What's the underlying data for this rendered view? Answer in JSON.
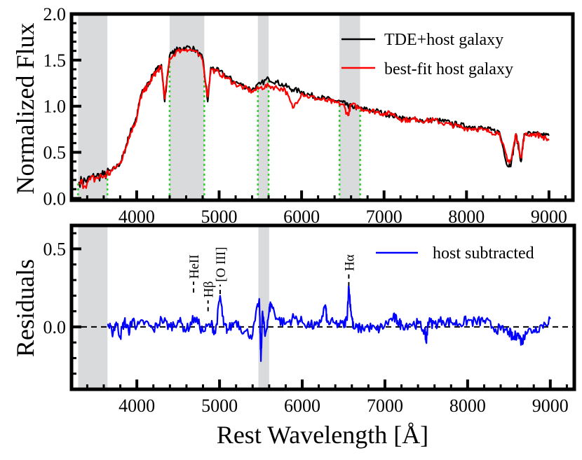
{
  "chart_data": [
    {
      "type": "line",
      "panel": "top",
      "title": "",
      "xlabel": "",
      "ylabel": "Normalized Flux",
      "xlim": [
        3210,
        9290
      ],
      "ylim": [
        -0.02,
        2.0
      ],
      "xticks": [
        4000,
        5000,
        6000,
        7000,
        8000,
        9000
      ],
      "xtick_labels": [
        "4000",
        "5000",
        "6000",
        "7000",
        "8000",
        "9000"
      ],
      "yticks": [
        0.0,
        0.5,
        1.0,
        1.5,
        2.0
      ],
      "ytick_labels": [
        "0.0",
        "0.5",
        "1.0",
        "1.5",
        "2.0"
      ],
      "grid": false,
      "legend": "top-right",
      "shaded_regions": [
        [
          3290,
          3645
        ],
        [
          4400,
          4820
        ],
        [
          5470,
          5600
        ],
        [
          6460,
          6710
        ]
      ],
      "dotted_lines_color": "#33cc33",
      "series": [
        {
          "name": "TDE+host galaxy",
          "color": "#000000",
          "x": [
            3300,
            3400,
            3500,
            3600,
            3700,
            3800,
            3850,
            3900,
            3950,
            4000,
            4050,
            4100,
            4150,
            4200,
            4250,
            4300,
            4340,
            4400,
            4500,
            4600,
            4700,
            4800,
            4861,
            4900,
            5000,
            5100,
            5200,
            5300,
            5400,
            5500,
            5600,
            5700,
            5800,
            5893,
            6000,
            6100,
            6200,
            6300,
            6400,
            6500,
            6563,
            6600,
            6700,
            6800,
            6900,
            7000,
            7100,
            7200,
            7300,
            7400,
            7500,
            7600,
            7700,
            7800,
            7900,
            8000,
            8100,
            8200,
            8300,
            8400,
            8498,
            8542,
            8600,
            8662,
            8700,
            8800,
            8900,
            9000
          ],
          "y": [
            0.18,
            0.2,
            0.24,
            0.25,
            0.3,
            0.38,
            0.5,
            0.66,
            0.78,
            0.88,
            1.12,
            1.2,
            1.25,
            1.35,
            1.4,
            1.45,
            1.05,
            1.55,
            1.62,
            1.64,
            1.62,
            1.52,
            1.05,
            1.42,
            1.38,
            1.32,
            1.26,
            1.22,
            1.18,
            1.24,
            1.3,
            1.26,
            1.22,
            1.18,
            1.16,
            1.12,
            1.1,
            1.08,
            1.06,
            1.04,
            1.0,
            1.0,
            0.98,
            0.96,
            0.95,
            0.92,
            0.9,
            0.88,
            0.85,
            0.86,
            0.84,
            0.85,
            0.84,
            0.82,
            0.8,
            0.78,
            0.78,
            0.76,
            0.74,
            0.72,
            0.35,
            0.38,
            0.7,
            0.4,
            0.7,
            0.7,
            0.69,
            0.68
          ]
        },
        {
          "name": "best-fit host galaxy",
          "color": "#ff0000",
          "x": [
            3300,
            3400,
            3500,
            3600,
            3700,
            3800,
            3850,
            3900,
            3950,
            4000,
            4050,
            4100,
            4150,
            4200,
            4250,
            4300,
            4340,
            4400,
            4500,
            4600,
            4700,
            4800,
            4861,
            4900,
            5000,
            5100,
            5200,
            5300,
            5400,
            5500,
            5600,
            5700,
            5800,
            5893,
            6000,
            6100,
            6200,
            6300,
            6400,
            6500,
            6563,
            6600,
            6700,
            6800,
            6900,
            7000,
            7100,
            7200,
            7300,
            7400,
            7500,
            7600,
            7700,
            7800,
            7900,
            8000,
            8100,
            8200,
            8300,
            8400,
            8498,
            8542,
            8600,
            8662,
            8700,
            8800,
            8900,
            9000
          ],
          "y": [
            0.16,
            0.17,
            0.22,
            0.24,
            0.3,
            0.38,
            0.5,
            0.65,
            0.76,
            0.86,
            1.1,
            1.18,
            1.24,
            1.33,
            1.38,
            1.43,
            1.08,
            1.52,
            1.6,
            1.62,
            1.6,
            1.5,
            1.1,
            1.4,
            1.36,
            1.3,
            1.24,
            1.2,
            1.16,
            1.2,
            1.22,
            1.2,
            1.18,
            0.98,
            1.14,
            1.1,
            1.08,
            1.06,
            1.04,
            1.02,
            0.9,
            1.02,
            0.98,
            0.96,
            0.94,
            0.92,
            0.92,
            0.86,
            0.85,
            0.86,
            0.84,
            0.85,
            0.82,
            0.8,
            0.78,
            0.76,
            0.76,
            0.74,
            0.72,
            0.71,
            0.4,
            0.42,
            0.7,
            0.44,
            0.68,
            0.7,
            0.68,
            0.63
          ]
        }
      ]
    },
    {
      "type": "line",
      "panel": "bottom",
      "title": "",
      "xlabel": "Rest Wavelength [Å]",
      "ylabel": "Residuals",
      "xlim": [
        3210,
        9290
      ],
      "ylim": [
        -0.4,
        0.65
      ],
      "xticks": [
        4000,
        5000,
        6000,
        7000,
        8000,
        9000
      ],
      "xtick_labels": [
        "4000",
        "5000",
        "6000",
        "7000",
        "8000",
        "9000"
      ],
      "yticks": [
        0.0,
        0.5
      ],
      "ytick_labels": [
        "0.0",
        "0.5"
      ],
      "grid": false,
      "legend": "top-right",
      "shaded_regions": [
        [
          3290,
          3645
        ],
        [
          5470,
          5600
        ]
      ],
      "zero_line": 0.0,
      "annotations": [
        {
          "label": "HeII",
          "x": 4686
        },
        {
          "label": "Hβ",
          "x": 4861
        },
        {
          "label": "[O III]",
          "x": 5007
        },
        {
          "label": "Hα",
          "x": 6563
        }
      ],
      "series": [
        {
          "name": "host subtracted",
          "color": "#0000ff",
          "x": [
            3650,
            3700,
            3750,
            3800,
            3850,
            3900,
            3950,
            4000,
            4100,
            4200,
            4300,
            4400,
            4500,
            4600,
            4700,
            4800,
            4900,
            4950,
            5007,
            5050,
            5100,
            5200,
            5300,
            5400,
            5480,
            5500,
            5520,
            5550,
            5600,
            5620,
            5700,
            5800,
            5900,
            6000,
            6100,
            6200,
            6280,
            6300,
            6400,
            6500,
            6540,
            6563,
            6590,
            6620,
            6700,
            6800,
            6900,
            7000,
            7100,
            7150,
            7200,
            7300,
            7400,
            7480,
            7500,
            7520,
            7600,
            7700,
            7800,
            7900,
            8000,
            8100,
            8200,
            8300,
            8400,
            8500,
            8550,
            8600,
            8660,
            8700,
            8800,
            8900,
            9000
          ],
          "y": [
            0.02,
            -0.04,
            0.03,
            -0.06,
            0.04,
            -0.03,
            0.05,
            0.0,
            0.03,
            -0.02,
            0.05,
            0.0,
            0.04,
            -0.02,
            0.06,
            -0.03,
            0.02,
            -0.04,
            0.2,
            0.01,
            -0.02,
            0.04,
            -0.03,
            -0.05,
            0.18,
            -0.22,
            0.1,
            -0.06,
            0.1,
            0.15,
            0.05,
            0.02,
            0.06,
            0.03,
            0.01,
            0.0,
            0.14,
            0.03,
            0.02,
            0.01,
            0.05,
            0.26,
            0.1,
            -0.01,
            -0.01,
            0.0,
            -0.02,
            0.01,
            0.06,
            0.04,
            0.01,
            0.02,
            0.02,
            -0.02,
            -0.1,
            0.03,
            0.02,
            0.04,
            0.03,
            0.02,
            0.04,
            0.03,
            0.04,
            0.0,
            -0.02,
            -0.03,
            -0.08,
            -0.04,
            -0.1,
            -0.03,
            -0.02,
            0.01,
            0.05
          ]
        }
      ]
    }
  ]
}
